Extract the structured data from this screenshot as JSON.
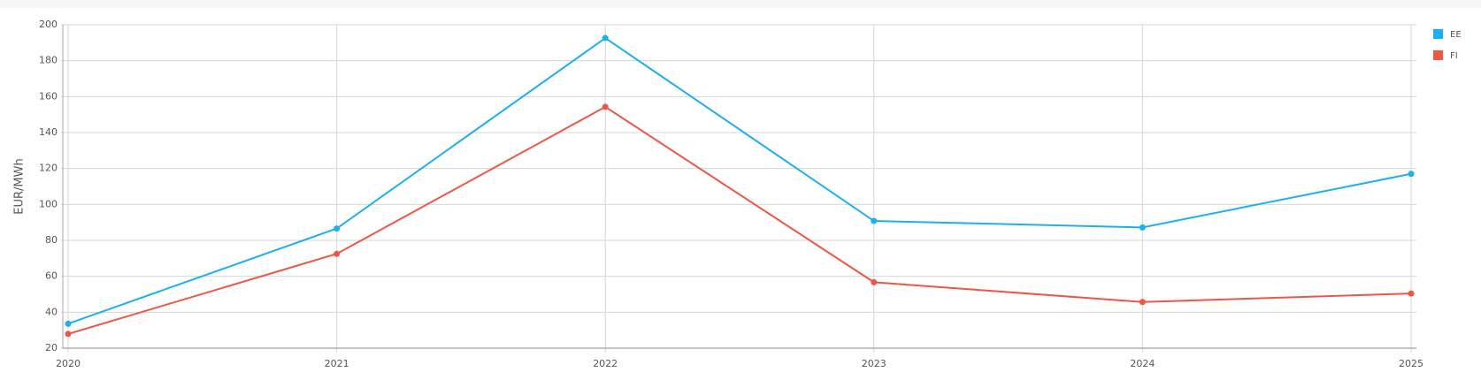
{
  "chart_data": {
    "type": "line",
    "y_label": "EUR/MWh",
    "x": [
      2020,
      2021,
      2022,
      2023,
      2024,
      2025
    ],
    "xlim": [
      2020,
      2025
    ],
    "xticks": [
      2020,
      2021,
      2022,
      2023,
      2024,
      2025
    ],
    "ylim": [
      20,
      200
    ],
    "yticks": [
      20,
      40,
      60,
      80,
      100,
      120,
      140,
      160,
      180,
      200
    ],
    "grid": true,
    "legend": "top-right",
    "series": [
      {
        "name": "EE",
        "color": "#1cb0f0",
        "values": [
          33.6,
          86.6,
          192.6,
          90.8,
          87.2,
          117
        ]
      },
      {
        "name": "FI",
        "color": "#f05545",
        "values": [
          27.9,
          72.5,
          154.3,
          56.7,
          45.7,
          50.4
        ]
      }
    ]
  }
}
